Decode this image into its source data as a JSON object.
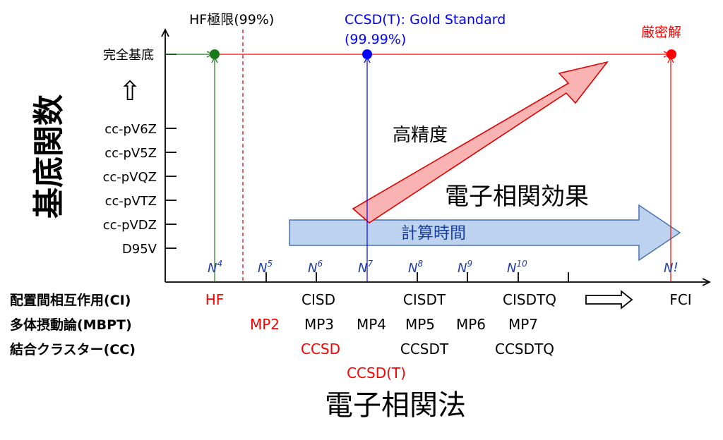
{
  "y_axis_title": "基底関数",
  "x_axis_title": "電子相関法",
  "basis_sets": {
    "complete": "完全基底",
    "up_arrow_glyph": "⇧",
    "ticks": [
      "cc-pV6Z",
      "cc-pV5Z",
      "cc-pVQZ",
      "cc-pVTZ",
      "cc-pVDZ",
      "D95V"
    ]
  },
  "scaling": {
    "n4": {
      "base": "N",
      "exp": "4"
    },
    "n5": {
      "base": "N",
      "exp": "5"
    },
    "n6": {
      "base": "N",
      "exp": "6"
    },
    "n7": {
      "base": "N",
      "exp": "7"
    },
    "n8": {
      "base": "N",
      "exp": "8"
    },
    "n9": {
      "base": "N",
      "exp": "9"
    },
    "n10": {
      "base": "N",
      "exp": "10"
    },
    "nfact": {
      "base": "N",
      "exp": "!"
    }
  },
  "row_labels": {
    "ci": "配置間相互作用(CI)",
    "mbpt": "多体摂動論(MBPT)",
    "cc": "結合クラスター(CC)"
  },
  "methods": {
    "hf": "HF",
    "cisd": "CISD",
    "cisdt": "CISDT",
    "cisdtq": "CISDTQ",
    "fci": "FCI",
    "mp2": "MP2",
    "mp3": "MP3",
    "mp4": "MP4",
    "mp5": "MP5",
    "mp6": "MP6",
    "mp7": "MP7",
    "ccsd": "CCSD",
    "ccsdt": "CCSDT",
    "ccsdtq": "CCSDTQ",
    "ccsd_t": "CCSD(T)"
  },
  "top_labels": {
    "hf_limit": "HF極限(99%)",
    "gold_line1": "CCSD(T): Gold Standard",
    "gold_line2": "(99.99%)",
    "exact": "厳密解"
  },
  "arrows": {
    "accuracy": "高精度",
    "correlation": "電子相関効果",
    "time": "計算時間"
  },
  "colors": {
    "red": "#ff0000",
    "blue": "#0000ff",
    "green": "#1a7a1a",
    "black": "#000000",
    "darkred": "#c00000",
    "arrow_red_fill": "#f9b3b3",
    "arrow_blue_fill": "#bcd2ee",
    "arrow_blue_stroke": "#4a72b0",
    "scaling_blue": "#1f3fb0"
  }
}
